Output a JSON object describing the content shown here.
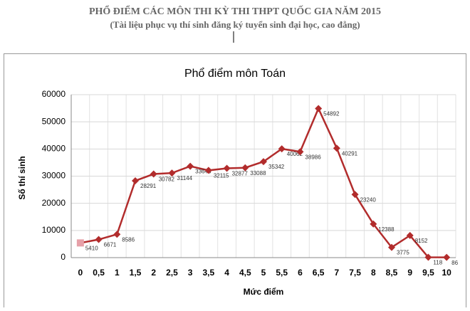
{
  "header": {
    "title": "PHỔ ĐIỂM CÁC MÔN THI KỲ THI THPT QUỐC GIA NĂM 2015",
    "subtitle": "(Tài liệu phục vụ thí sinh đăng ký tuyển sinh đại học, cao đẳng)"
  },
  "chart_data": {
    "type": "line",
    "title": "Phổ điểm môn Toán",
    "x_label": "Mức điểm",
    "y_label": "Số thí sinh",
    "categories": [
      "0",
      "0,5",
      "1",
      "1,5",
      "2",
      "2,5",
      "3",
      "3,5",
      "4",
      "4,5",
      "5",
      "5,5",
      "6",
      "6,5",
      "7",
      "7,5",
      "8",
      "8,5",
      "9",
      "9,5",
      "10"
    ],
    "values": [
      5410,
      6671,
      8586,
      28291,
      30782,
      31144,
      33645,
      32115,
      32877,
      33088,
      35342,
      40062,
      38986,
      54892,
      40291,
      23240,
      12388,
      3775,
      8152,
      118,
      86
    ],
    "color": "#b22c2c",
    "ylim": [
      0,
      60000
    ],
    "yticks": [
      0,
      10000,
      20000,
      30000,
      40000,
      50000,
      60000
    ],
    "grid": true
  }
}
